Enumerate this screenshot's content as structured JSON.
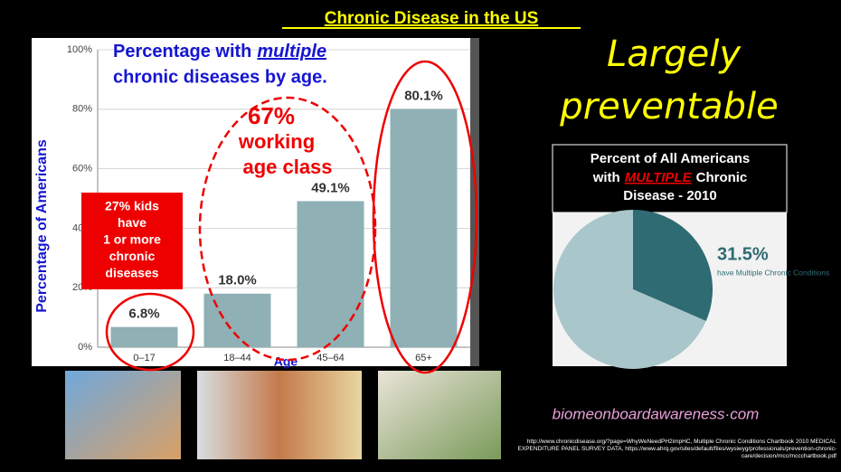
{
  "slide": {
    "title": "Chronic Disease in the US",
    "tagline": [
      "Largely",
      "preventable"
    ],
    "website": "biomeonboardawareness·com",
    "source": "http://www.chronicdisease.org/?page=WhyWeNeedPH2impHC, Multiple Chronic Conditions Chartbook 2010 MEDICAL EXPENDITURE PANEL SURVEY DATA, https://www.ahrq.gov/sites/default/files/wysiwyg/professionals/prevention-chronic-care/decision/mcc/mccchartbook.pdf"
  },
  "chart_data": [
    {
      "type": "bar",
      "title": [
        "Percentage with",
        "multiple",
        "chronic diseases by age."
      ],
      "categories": [
        "0–17",
        "18–44",
        "45–64",
        "65+"
      ],
      "values": [
        6.8,
        18.0,
        49.1,
        80.1
      ],
      "value_labels": [
        "6.8%",
        "18.0%",
        "49.1%",
        "80.1%"
      ],
      "color": "#8fb0b5",
      "ylim": [
        0,
        100
      ],
      "yticks": [
        {
          "value": 0,
          "label": "0%"
        },
        {
          "value": 20,
          "label": "20%"
        },
        {
          "value": 40,
          "label": "40%"
        },
        {
          "value": 60,
          "label": "60%"
        },
        {
          "value": 80,
          "label": "80%"
        },
        {
          "value": 100,
          "label": "100%"
        }
      ],
      "grid": true,
      "ylabel": "Percentage of Americans",
      "xlabel": "Age",
      "annotations": [
        [
          "67%",
          "working",
          "age class"
        ],
        [
          "27% kids",
          "have",
          "1 or more",
          "chronic",
          "diseases"
        ]
      ]
    },
    {
      "type": "pie",
      "title": [
        "Percent of All Americans",
        "with",
        "MULTIPLE",
        "Chronic",
        "Disease - 2010"
      ],
      "categories": [
        "have Multiple Chronic Conditions",
        null
      ],
      "values": [
        31.5,
        68.5
      ],
      "value_labels": [
        "31.5%",
        null
      ],
      "colors": [
        "#2f6b73",
        "#a9c6cb"
      ]
    }
  ]
}
